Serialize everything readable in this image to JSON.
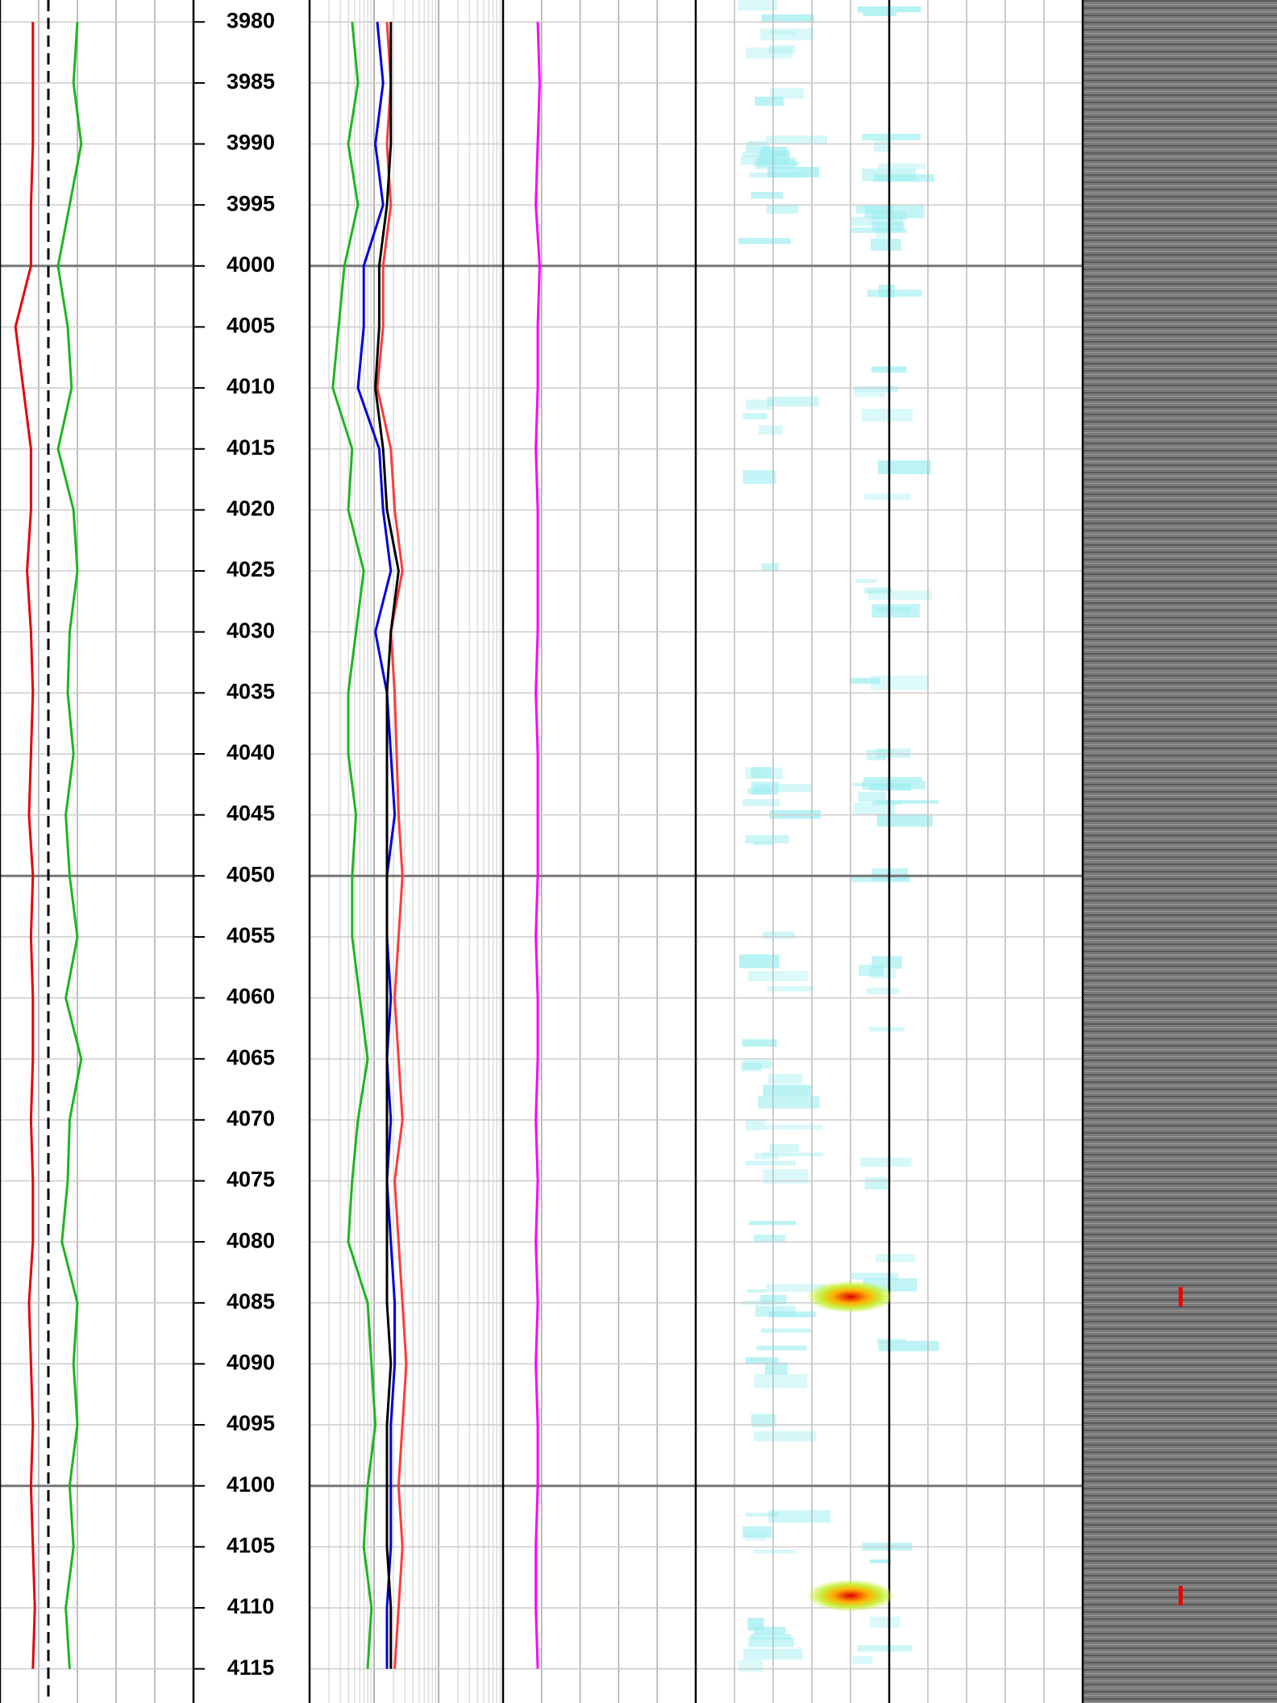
{
  "chart_data": {
    "type": "well-log",
    "ylim": [
      3978.2,
      4117.8
    ],
    "yticks": [
      3980,
      3985,
      3990,
      3995,
      4000,
      4005,
      4010,
      4015,
      4020,
      4025,
      4030,
      4035,
      4040,
      4045,
      4050,
      4055,
      4060,
      4065,
      4070,
      4075,
      4080,
      4085,
      4090,
      4095,
      4100,
      4105,
      4110,
      4115
    ],
    "major_interval": 50,
    "depth": [
      3980,
      3985,
      3990,
      3995,
      4000,
      4005,
      4010,
      4015,
      4020,
      4025,
      4030,
      4035,
      4040,
      4045,
      4050,
      4055,
      4060,
      4065,
      4070,
      4075,
      4080,
      4085,
      4090,
      4095,
      4100,
      4105,
      4110,
      4115
    ],
    "tracks": [
      {
        "xlim": [
          0,
          100
        ],
        "cutoff": 25,
        "series": [
          {
            "color": "#e8000b",
            "values": [
              17,
              17,
              17,
              16,
              16,
              8,
              12,
              16,
              16,
              14,
              16,
              17,
              16,
              15,
              17,
              16,
              17,
              17,
              16,
              17,
              17,
              15,
              16,
              17,
              16,
              17,
              18,
              17
            ]
          },
          {
            "color": "#1fb51f",
            "values": [
              40,
              38,
              42,
              36,
              30,
              35,
              37,
              30,
              38,
              40,
              36,
              35,
              38,
              34,
              36,
              40,
              34,
              42,
              36,
              35,
              32,
              40,
              38,
              40,
              36,
              38,
              34,
              36
            ]
          }
        ]
      },
      {
        "xlim": [
          0,
          100
        ],
        "series": [
          {
            "color": "#1fb51f",
            "values": [
              22,
              25,
              20,
              25,
              18,
              15,
              12,
              22,
              20,
              28,
              24,
              20,
              20,
              24,
              22,
              22,
              26,
              30,
              25,
              22,
              20,
              30,
              32,
              34,
              30,
              28,
              32,
              30
            ]
          },
          {
            "color": "#0000e0",
            "values": [
              35,
              38,
              34,
              38,
              28,
              28,
              25,
              36,
              38,
              42,
              34,
              40,
              42,
              44,
              40,
              40,
              42,
              40,
              42,
              40,
              42,
              44,
              44,
              42,
              42,
              42,
              40,
              40
            ]
          },
          {
            "color": "#ff3b3b",
            "values": [
              40,
              42,
              40,
              42,
              38,
              38,
              35,
              42,
              44,
              48,
              42,
              44,
              45,
              46,
              48,
              46,
              44,
              46,
              48,
              44,
              46,
              48,
              50,
              48,
              46,
              48,
              46,
              44
            ]
          },
          {
            "color": "#000000",
            "values": [
              42,
              42,
              42,
              40,
              36,
              36,
              34,
              38,
              40,
              46,
              42,
              40,
              40,
              40,
              40,
              40,
              40,
              40,
              40,
              40,
              40,
              40,
              42,
              40,
              40,
              40,
              42,
              42
            ]
          }
        ]
      },
      {
        "xlim": [
          0,
          100
        ],
        "series": [
          {
            "color": "#ff00ff",
            "values": [
              18,
              19,
              18,
              17,
              19,
              18,
              18,
              17,
              18,
              18,
              18,
              17,
              18,
              18,
              18,
              17,
              18,
              18,
              17,
              18,
              17,
              18,
              17,
              18,
              18,
              17,
              17,
              18
            ]
          }
        ]
      }
    ],
    "hotspots": [
      4084.5,
      4109
    ]
  }
}
